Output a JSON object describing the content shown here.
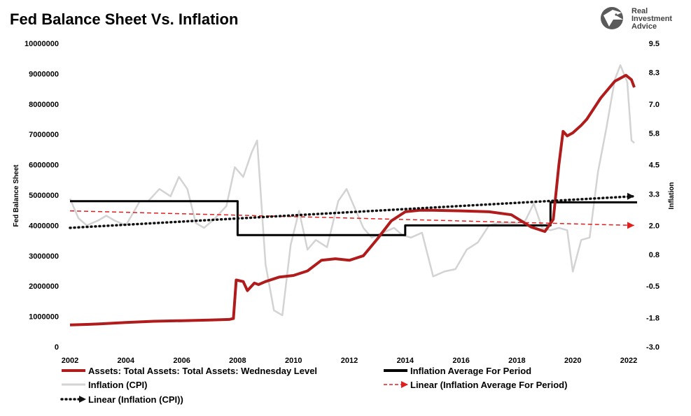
{
  "chart_data": {
    "type": "line",
    "title": "Fed Balance Sheet Vs. Inflation",
    "ylabel": "Fed Balance Sheet",
    "y2label": "Inflation",
    "xlim": [
      2002,
      2022.3
    ],
    "ylim": [
      0,
      10000000
    ],
    "y2lim": [
      -3.0,
      9.5
    ],
    "x_ticks": [
      2002,
      2004,
      2006,
      2008,
      2010,
      2012,
      2014,
      2016,
      2018,
      2020,
      2022
    ],
    "y_ticks": [
      0,
      1000000,
      2000000,
      3000000,
      4000000,
      5000000,
      6000000,
      7000000,
      8000000,
      9000000,
      10000000
    ],
    "y_tick_labels": [
      "0",
      "1000000",
      "2000000",
      "3000000",
      "4000000",
      "5000000",
      "6000000",
      "7000000",
      "8000000",
      "9000000",
      "10000000"
    ],
    "y2_ticks": [
      -3.0,
      -1.8,
      -0.5,
      0.8,
      2.0,
      3.3,
      4.5,
      5.8,
      7.0,
      8.3,
      9.5
    ],
    "y2_tick_labels": [
      "-3.0",
      "-1.8",
      "-0.5",
      "0.8",
      "2.0",
      "3.3",
      "4.5",
      "5.8",
      "7.0",
      "8.3",
      "9.5"
    ],
    "grid": false,
    "legend_position": "bottom",
    "series": [
      {
        "name": "Assets: Total Assets: Total Assets: Wednesday Level",
        "axis": "left",
        "color": "#b01c1c",
        "style": "solid",
        "x": [
          2002.0,
          2003.0,
          2004.0,
          2005.0,
          2006.0,
          2007.0,
          2007.7,
          2007.85,
          2007.95,
          2008.2,
          2008.35,
          2008.6,
          2008.75,
          2009.0,
          2009.5,
          2010.0,
          2010.5,
          2011.0,
          2011.5,
          2012.0,
          2012.5,
          2013.0,
          2013.5,
          2014.0,
          2014.5,
          2015.0,
          2016.0,
          2017.0,
          2017.8,
          2018.5,
          2019.0,
          2019.3,
          2019.5,
          2019.65,
          2019.8,
          2020.0,
          2020.3,
          2020.5,
          2021.0,
          2021.5,
          2021.9,
          2022.1,
          2022.2
        ],
        "values": [
          720000,
          750000,
          800000,
          840000,
          860000,
          880000,
          900000,
          930000,
          2200000,
          2150000,
          1850000,
          2100000,
          2050000,
          2150000,
          2300000,
          2350000,
          2500000,
          2850000,
          2900000,
          2850000,
          3000000,
          3550000,
          4150000,
          4450000,
          4500000,
          4500000,
          4480000,
          4450000,
          4350000,
          3950000,
          3800000,
          4200000,
          6000000,
          7100000,
          6950000,
          7050000,
          7300000,
          7500000,
          8200000,
          8750000,
          8950000,
          8800000,
          8550000
        ]
      },
      {
        "name": "Inflation Average For Period",
        "axis": "right",
        "color": "#000000",
        "style": "solid",
        "x": [
          2002.0,
          2008.0,
          2008.0,
          2014.0,
          2014.0,
          2019.2,
          2019.2,
          2022.3
        ],
        "values": [
          3.0,
          3.0,
          1.6,
          1.6,
          2.0,
          2.0,
          2.95,
          2.95
        ]
      },
      {
        "name": "Inflation (CPI)",
        "axis": "right",
        "color": "#d3d3d3",
        "style": "solid",
        "x": [
          2002.0,
          2002.3,
          2002.6,
          2003.0,
          2003.3,
          2003.6,
          2004.0,
          2004.5,
          2004.8,
          2005.2,
          2005.6,
          2005.9,
          2006.2,
          2006.5,
          2006.8,
          2007.2,
          2007.6,
          2007.9,
          2008.2,
          2008.5,
          2008.7,
          2009.0,
          2009.3,
          2009.6,
          2009.9,
          2010.2,
          2010.5,
          2010.8,
          2011.2,
          2011.6,
          2011.9,
          2012.2,
          2012.5,
          2012.8,
          2013.2,
          2013.6,
          2013.9,
          2014.2,
          2014.6,
          2015.0,
          2015.4,
          2015.8,
          2016.2,
          2016.6,
          2017.0,
          2017.3,
          2017.6,
          2018.0,
          2018.3,
          2018.6,
          2018.9,
          2019.2,
          2019.5,
          2019.8,
          2020.0,
          2020.3,
          2020.6,
          2020.9,
          2021.2,
          2021.5,
          2021.7,
          2021.95,
          2022.1,
          2022.2
        ],
        "values": [
          3.1,
          2.3,
          2.0,
          2.2,
          2.4,
          2.2,
          2.0,
          3.0,
          3.0,
          3.5,
          3.2,
          4.0,
          3.5,
          2.1,
          1.9,
          2.3,
          2.8,
          4.4,
          4.0,
          5.0,
          5.5,
          0.4,
          -1.5,
          -1.7,
          1.2,
          2.6,
          1.0,
          1.4,
          1.1,
          3.0,
          3.5,
          2.7,
          1.9,
          1.5,
          1.7,
          1.9,
          1.6,
          1.5,
          1.7,
          -0.1,
          0.1,
          0.2,
          1.0,
          1.3,
          2.0,
          2.1,
          2.1,
          2.1,
          2.2,
          2.9,
          1.9,
          1.8,
          1.9,
          1.8,
          0.1,
          1.4,
          1.5,
          4.2,
          6.0,
          8.0,
          8.6,
          7.9,
          5.5,
          5.4
        ]
      },
      {
        "name": "Linear (Inflation Average For Period)",
        "axis": "right",
        "color": "#e0201e",
        "style": "dashed",
        "x": [
          2002.0,
          2022.2
        ],
        "values": [
          2.6,
          2.0
        ]
      },
      {
        "name": "Linear (Inflation (CPI))",
        "axis": "right",
        "color": "#111111",
        "style": "dotted",
        "x": [
          2002.0,
          2022.2
        ],
        "values": [
          1.9,
          3.2
        ]
      }
    ]
  },
  "brand": {
    "name_line1": "Real",
    "name_line2": "Investment",
    "name_line3": "Advice",
    "color": "#555555"
  }
}
